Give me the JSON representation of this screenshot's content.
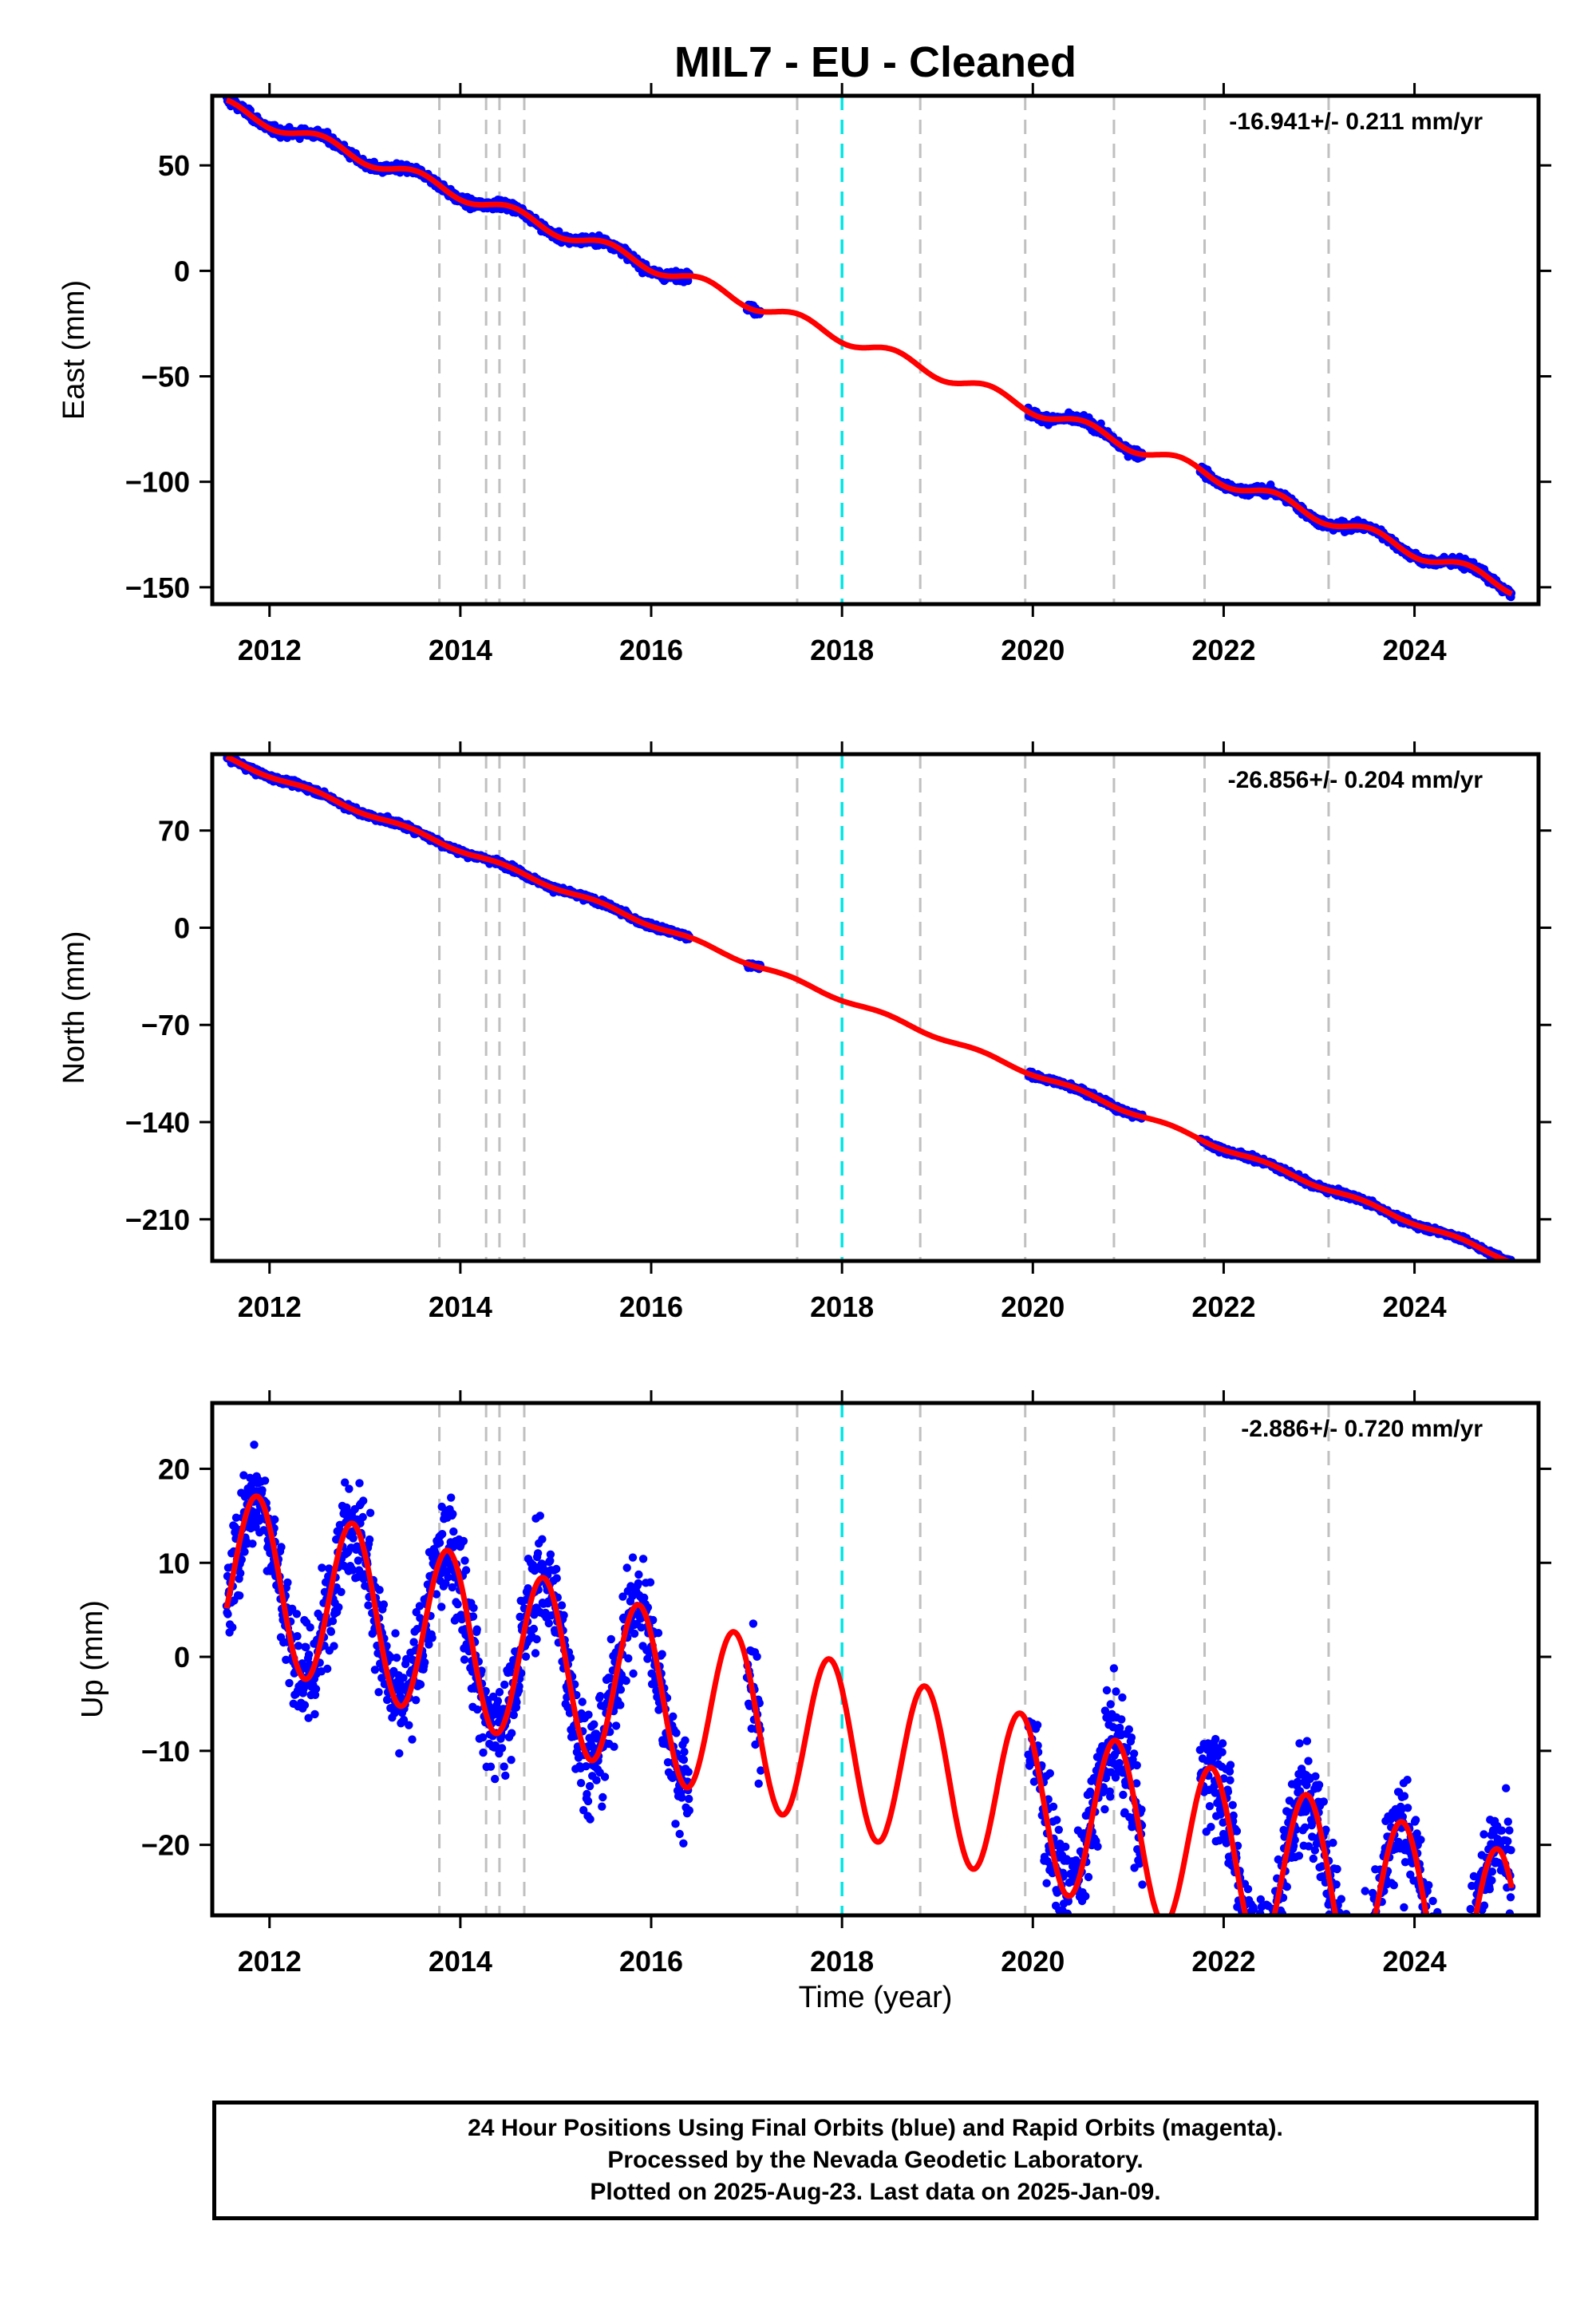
{
  "chart_data": {
    "title": "MIL7  - EU - Cleaned",
    "type": "scatter",
    "xlabel": "Time (year)",
    "xlim": [
      2011.4,
      2025.3
    ],
    "xticks": [
      2012,
      2014,
      2016,
      2018,
      2020,
      2022,
      2024
    ],
    "equipment_change_epochs": [
      2013.78,
      2014.27,
      2014.41,
      2014.67,
      2017.53,
      2018.82,
      2019.92,
      2020.85,
      2021.8,
      2023.1
    ],
    "reference_epoch": 2018.0,
    "series_styles": {
      "final_orbits": "#0000ff",
      "model_fit": "#ff0000",
      "equipment_change_line": "#c0c0c0",
      "reference_line": "#00e5e5"
    },
    "data_gaps": [
      [
        2016.4,
        2017.0
      ],
      [
        2017.15,
        2019.95
      ],
      [
        2021.15,
        2021.75
      ]
    ],
    "panels": [
      {
        "ylabel": "East (mm)",
        "ylim": [
          -158,
          83
        ],
        "yticks": [
          50,
          0,
          -50,
          -100,
          -150
        ],
        "rate": "-16.941+/- 0.211 mm/yr",
        "velocity": -16.941,
        "trend_start": [
          2011.55,
          78
        ],
        "annual_amplitude": 3.0,
        "annual_phase": 0.3,
        "noise_sigma": 1.5
      },
      {
        "ylabel": "North (mm)",
        "ylim": [
          -240,
          125
        ],
        "yticks": [
          70,
          0,
          -70,
          -140,
          -210
        ],
        "rate": "-26.856+/- 0.204 mm/yr",
        "velocity": -26.856,
        "trend_start": [
          2011.55,
          122
        ],
        "annual_amplitude": 1.5,
        "annual_phase": 0.2,
        "noise_sigma": 1.6
      },
      {
        "ylabel": "Up (mm)",
        "ylim": [
          -27.5,
          27
        ],
        "yticks": [
          20,
          10,
          0,
          -10,
          -20
        ],
        "rate": "-2.886+/- 0.720 mm/yr",
        "velocity": -2.886,
        "trend_start": [
          2011.55,
          9
        ],
        "annual_amplitude": 9.0,
        "annual_phase": 0.62,
        "noise_sigma": 4.0
      }
    ]
  },
  "footer": {
    "line1": "24 Hour Positions Using Final Orbits (blue) and Rapid Orbits (magenta).",
    "line2": "Processed by the Nevada Geodetic Laboratory.",
    "line3": "Plotted on 2025-Aug-23. Last data on 2025-Jan-09."
  }
}
